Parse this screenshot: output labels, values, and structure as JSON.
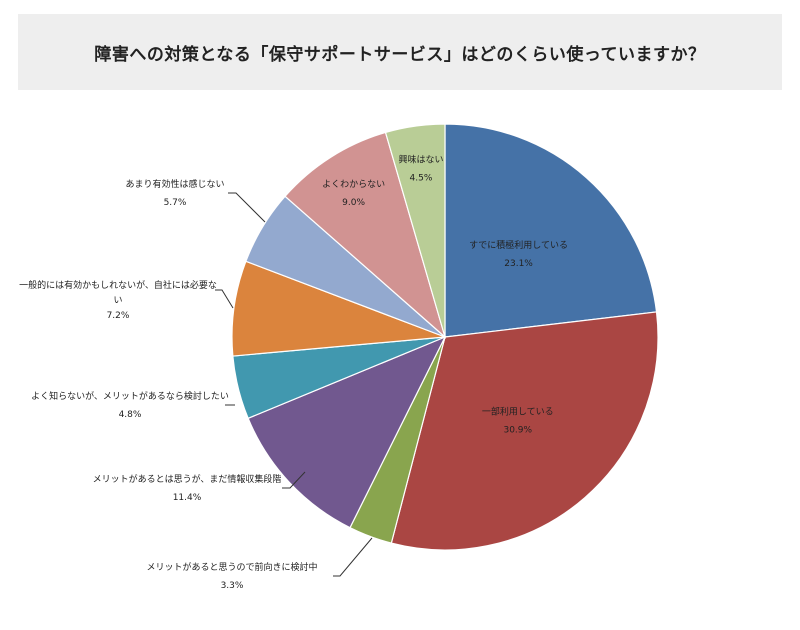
{
  "title": "障害への対策となる「保守サポートサービス」はどのくらい使っていますか？",
  "chart_data": {
    "type": "pie",
    "title": "障害への対策となる「保守サポートサービス」はどのくらい使っていますか？",
    "start_angle_deg": 0,
    "direction": "clockwise",
    "slices": [
      {
        "label": "すでに積極利用している",
        "value": 23.1,
        "value_label": "23.1%",
        "color": "#4572a7",
        "label_inside": true
      },
      {
        "label": "一部利用している",
        "value": 30.9,
        "value_label": "30.9%",
        "color": "#aa4643",
        "label_inside": true
      },
      {
        "label": "メリットがあると思うので前向きに検討中",
        "value": 3.3,
        "value_label": "3.3%",
        "color": "#89a54e",
        "label_inside": false
      },
      {
        "label": "メリットがあるとは思うが、まだ情報収集段階",
        "value": 11.4,
        "value_label": "11.4%",
        "color": "#71588f",
        "label_inside": false
      },
      {
        "label": "よく知らないが、メリットがあるなら検討したい",
        "value": 4.8,
        "value_label": "4.8%",
        "color": "#4198af",
        "label_inside": false
      },
      {
        "label": "一般的には有効かもしれないが、自社には必要ない",
        "value": 7.2,
        "value_label": "7.2%",
        "color": "#db843d",
        "label_inside": false
      },
      {
        "label": "あまり有効性は感じない",
        "value": 5.7,
        "value_label": "5.7%",
        "color": "#93a9cf",
        "label_inside": false
      },
      {
        "label": "よくわからない",
        "value": 9.0,
        "value_label": "9.0%",
        "color": "#d19392",
        "label_inside": true
      },
      {
        "label": "興味はない",
        "value": 4.5,
        "value_label": "4.5%",
        "color": "#b9cd96",
        "label_inside": true
      }
    ]
  }
}
